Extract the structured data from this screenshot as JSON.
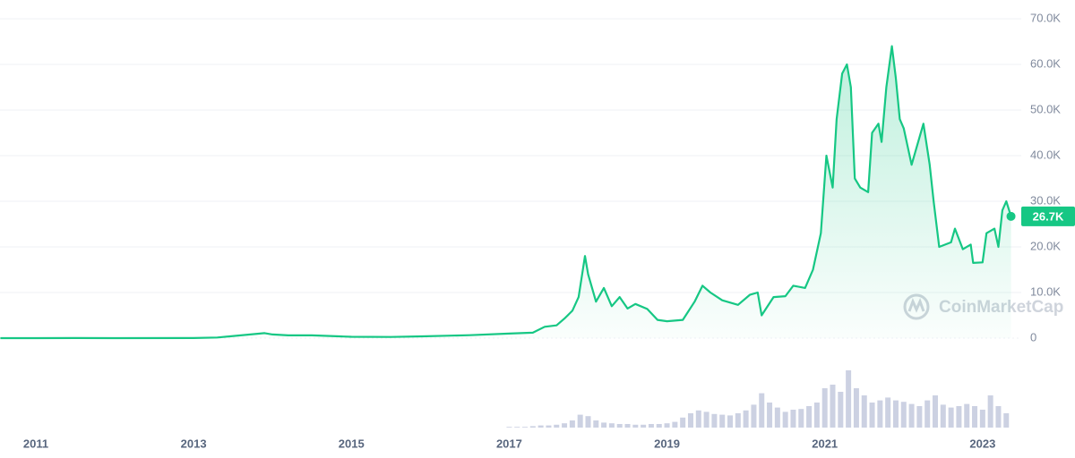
{
  "chart_data": [
    {
      "type": "line",
      "area": true,
      "color": "#16c784",
      "x": [
        2010.55,
        2011.0,
        2011.5,
        2012.0,
        2013.0,
        2013.3,
        2013.9,
        2014.0,
        2014.2,
        2014.5,
        2014.9,
        2015.0,
        2015.5,
        2015.9,
        2016.5,
        2017.0,
        2017.3,
        2017.45,
        2017.6,
        2017.7,
        2017.8,
        2017.88,
        2017.96,
        2018.0,
        2018.1,
        2018.2,
        2018.3,
        2018.4,
        2018.5,
        2018.6,
        2018.75,
        2018.88,
        2019.0,
        2019.2,
        2019.35,
        2019.45,
        2019.55,
        2019.7,
        2019.9,
        2020.05,
        2020.15,
        2020.2,
        2020.35,
        2020.5,
        2020.6,
        2020.75,
        2020.85,
        2020.95,
        2021.02,
        2021.1,
        2021.15,
        2021.22,
        2021.28,
        2021.33,
        2021.38,
        2021.45,
        2021.55,
        2021.6,
        2021.68,
        2021.72,
        2021.78,
        2021.85,
        2021.9,
        2021.95,
        2022.0,
        2022.1,
        2022.2,
        2022.25,
        2022.33,
        2022.38,
        2022.45,
        2022.6,
        2022.65,
        2022.75,
        2022.85,
        2022.88,
        2023.0,
        2023.05,
        2023.15,
        2023.2,
        2023.25,
        2023.3,
        2023.36
      ],
      "values": [
        0.1,
        0.3,
        15,
        5,
        13,
        140,
        1100,
        800,
        600,
        600,
        350,
        300,
        250,
        400,
        650,
        1000,
        1200,
        2500,
        2800,
        4300,
        6000,
        9000,
        18000,
        14000,
        8000,
        11000,
        7000,
        9000,
        6500,
        7500,
        6400,
        4000,
        3700,
        4000,
        8000,
        11500,
        10000,
        8300,
        7300,
        9500,
        10000,
        5000,
        9000,
        9200,
        11500,
        11000,
        15000,
        23000,
        40000,
        33000,
        48000,
        58000,
        60000,
        55000,
        35000,
        33000,
        32000,
        45000,
        47000,
        43000,
        55000,
        64000,
        57000,
        48000,
        46000,
        38000,
        44000,
        47000,
        38000,
        30000,
        20000,
        21000,
        24000,
        19500,
        20500,
        16500,
        16600,
        23000,
        24000,
        20000,
        28000,
        30000,
        26700
      ],
      "current_price_label": "26.7K",
      "xlim": [
        2010.546,
        2023.49
      ],
      "xticks": [
        2011,
        2013,
        2015,
        2017,
        2019,
        2021,
        2023
      ],
      "ylim": [
        0,
        70000
      ],
      "yticks": [
        0,
        {
          "value": 10000,
          "label": "10.0K"
        },
        {
          "value": 20000,
          "label": "20.0K"
        },
        {
          "value": 30000,
          "label": "30.0K"
        },
        {
          "value": 40000,
          "label": "40.0K"
        },
        {
          "value": 50000,
          "label": "50.0K"
        },
        {
          "value": 60000,
          "label": "60.0K"
        },
        {
          "value": 70000,
          "label": "70.0K"
        }
      ],
      "grid": true,
      "watermark": "CoinMarketCap"
    },
    {
      "type": "bar",
      "color": "#b7bdd6",
      "x": [
        2017.0,
        2017.1,
        2017.2,
        2017.3,
        2017.4,
        2017.5,
        2017.6,
        2017.7,
        2017.8,
        2017.9,
        2018.0,
        2018.1,
        2018.2,
        2018.3,
        2018.4,
        2018.5,
        2018.6,
        2018.7,
        2018.8,
        2018.9,
        2019.0,
        2019.1,
        2019.2,
        2019.3,
        2019.4,
        2019.5,
        2019.6,
        2019.7,
        2019.8,
        2019.9,
        2020.0,
        2020.1,
        2020.2,
        2020.3,
        2020.4,
        2020.5,
        2020.6,
        2020.7,
        2020.8,
        2020.9,
        2021.0,
        2021.1,
        2021.2,
        2021.3,
        2021.4,
        2021.5,
        2021.6,
        2021.7,
        2021.8,
        2021.9,
        2022.0,
        2022.1,
        2022.2,
        2022.3,
        2022.4,
        2022.5,
        2022.6,
        2022.7,
        2022.8,
        2022.9,
        2023.0,
        2023.1,
        2023.2,
        2023.3
      ],
      "values": [
        1,
        1,
        1,
        2,
        3,
        3,
        4,
        6,
        10,
        18,
        16,
        10,
        7,
        6,
        5,
        5,
        4,
        4,
        5,
        5,
        6,
        8,
        14,
        20,
        24,
        22,
        19,
        18,
        17,
        20,
        24,
        32,
        48,
        35,
        28,
        22,
        25,
        26,
        30,
        35,
        55,
        60,
        50,
        80,
        55,
        45,
        35,
        38,
        42,
        38,
        36,
        33,
        30,
        38,
        45,
        32,
        28,
        30,
        33,
        30,
        25,
        45,
        30,
        20
      ],
      "xlim": [
        2010.546,
        2023.49
      ],
      "ylim": [
        0,
        100
      ]
    }
  ]
}
